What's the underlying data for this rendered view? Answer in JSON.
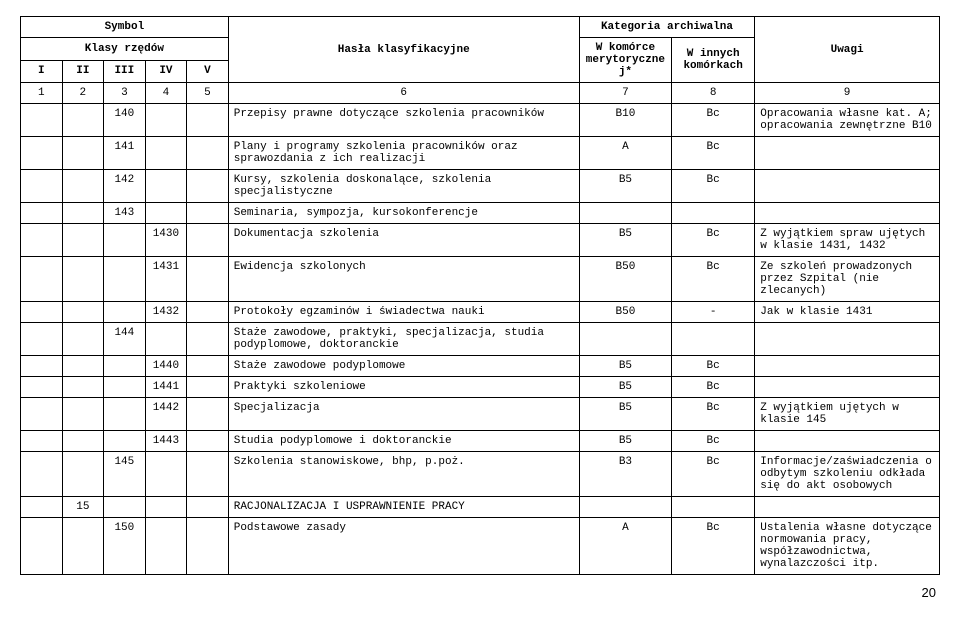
{
  "header": {
    "symbol": "Symbol",
    "klasy": "Klasy rzędów",
    "c1": "I",
    "c2": "II",
    "c3": "III",
    "c4": "IV",
    "c5": "V",
    "hasla": "Hasła klasyfikacyjne",
    "kat": "Kategoria archiwalna",
    "k1a": "W komórce",
    "k1b": "merytorycznej*",
    "k2a": "W innych",
    "k2b": "komórkach",
    "uwagi": "Uwagi",
    "n1": "1",
    "n2": "2",
    "n3": "3",
    "n4": "4",
    "n5": "5",
    "n6": "6",
    "n7": "7",
    "n8": "8",
    "n9": "9"
  },
  "rows": {
    "r0": {
      "c3": "140",
      "desc": "Przepisy prawne dotyczące szkolenia pracowników",
      "k1": "B10",
      "k2": "Bc",
      "rem": "Opracowania własne kat. A; opracowania zewnętrzne B10"
    },
    "r1": {
      "c3": "141",
      "desc": "Plany i programy szkolenia pracowników oraz sprawozdania z ich realizacji",
      "k1": "A",
      "k2": "Bc"
    },
    "r2": {
      "c3": "142",
      "desc": "Kursy, szkolenia doskonalące, szkolenia specjalistyczne",
      "k1": "B5",
      "k2": "Bc"
    },
    "r3": {
      "c3": "143",
      "desc": "Seminaria, sympozja, kursokonferencje"
    },
    "r4": {
      "c4": "1430",
      "desc": "Dokumentacja szkolenia",
      "k1": "B5",
      "k2": "Bc",
      "rem": "Z wyjątkiem spraw ujętych w klasie 1431, 1432"
    },
    "r5": {
      "c4": "1431",
      "desc": "Ewidencja szkolonych",
      "k1": "B50",
      "k2": "Bc",
      "rem": "Ze szkoleń prowadzonych przez Szpital (nie zlecanych)"
    },
    "r6": {
      "c4": "1432",
      "desc": "Protokoły egzaminów i świadectwa nauki",
      "k1": "B50",
      "k2": "-",
      "rem": "Jak w klasie 1431"
    },
    "r7": {
      "c3": "144",
      "desc": "Staże zawodowe, praktyki, specjalizacja, studia podyplomowe, doktoranckie"
    },
    "r8": {
      "c4": "1440",
      "desc": "Staże zawodowe podyplomowe",
      "k1": "B5",
      "k2": "Bc"
    },
    "r9": {
      "c4": "1441",
      "desc": "Praktyki szkoleniowe",
      "k1": "B5",
      "k2": "Bc"
    },
    "r10": {
      "c4": "1442",
      "desc": "Specjalizacja",
      "k1": "B5",
      "k2": "Bc",
      "rem": "Z wyjątkiem ujętych w klasie 145"
    },
    "r11": {
      "c4": "1443",
      "desc": "Studia podyplomowe i doktoranckie",
      "k1": "B5",
      "k2": "Bc"
    },
    "r12": {
      "c3": "145",
      "desc": "Szkolenia stanowiskowe, bhp, p.poż.",
      "k1": "B3",
      "k2": "Bc",
      "rem": "Informacje/zaświadczenia o odbytym szkoleniu odkłada się do akt osobowych"
    },
    "r13": {
      "c2": "15",
      "desc": "RACJONALIZACJA I USPRAWNIENIE PRACY"
    },
    "r14": {
      "c3": "150",
      "desc": "Podstawowe zasady",
      "k1": "A",
      "k2": "Bc",
      "rem": "Ustalenia własne dotyczące normowania pracy, współzawodnictwa, wynalazczości itp."
    }
  },
  "page_number": "20"
}
